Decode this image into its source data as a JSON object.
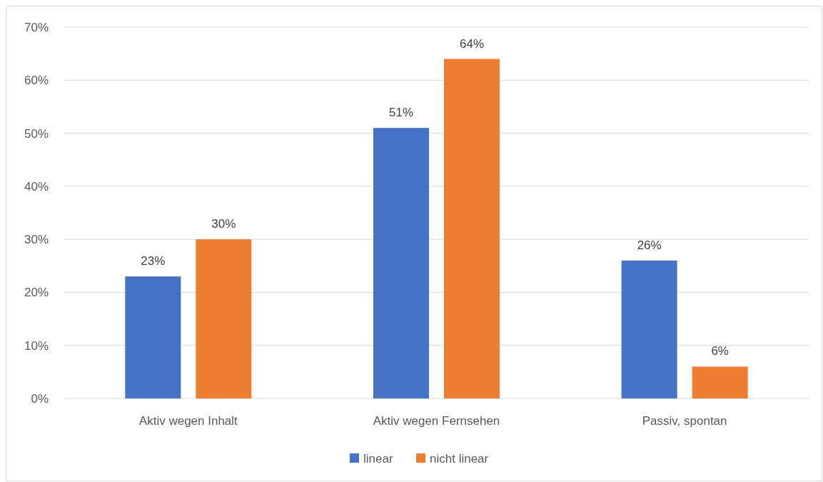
{
  "chart_data": {
    "type": "bar",
    "categories": [
      "Aktiv wegen Inhalt",
      "Aktiv wegen Fernsehen",
      "Passiv, spontan"
    ],
    "series": [
      {
        "name": "linear",
        "color": "#4472c4",
        "values": [
          23,
          51,
          26
        ],
        "value_labels": [
          "23%",
          "51%",
          "26%"
        ]
      },
      {
        "name": "nicht linear",
        "color": "#ed7d31",
        "values": [
          30,
          64,
          6
        ],
        "value_labels": [
          "30%",
          "64%",
          "6%"
        ]
      }
    ],
    "ylim": [
      0,
      70
    ],
    "yticks": [
      {
        "value": 0,
        "label": "0%"
      },
      {
        "value": 10,
        "label": "10%"
      },
      {
        "value": 20,
        "label": "20%"
      },
      {
        "value": 30,
        "label": "30%"
      },
      {
        "value": 40,
        "label": "40%"
      },
      {
        "value": 50,
        "label": "50%"
      },
      {
        "value": 60,
        "label": "60%"
      },
      {
        "value": 70,
        "label": "70%"
      }
    ],
    "grid": "y",
    "legend": "bottom"
  }
}
